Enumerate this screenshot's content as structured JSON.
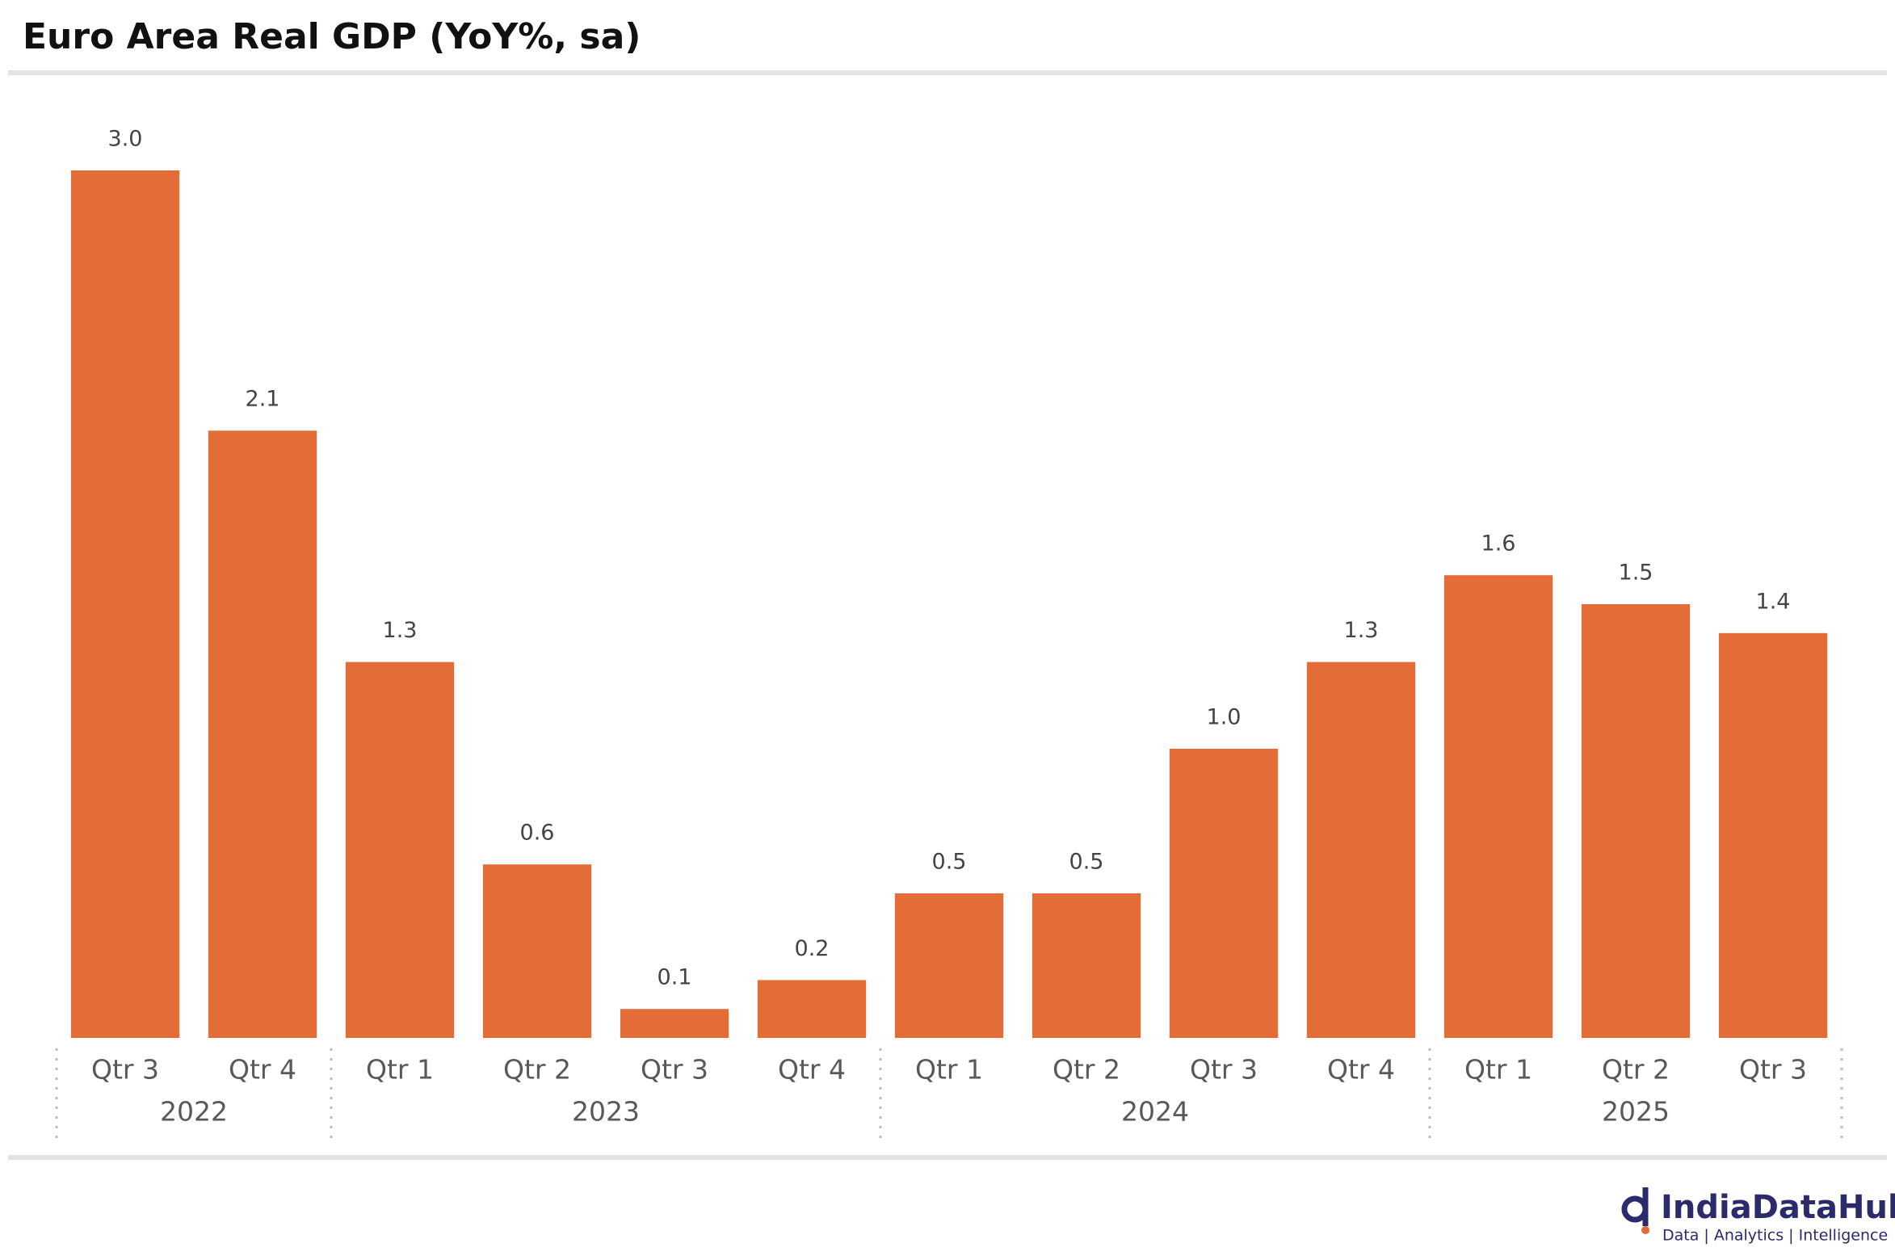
{
  "chart_data": {
    "type": "bar",
    "title": "Euro Area Real GDP (YoY%, sa)",
    "color": "#e36c37",
    "groups": [
      {
        "label": "2022",
        "categories": [
          "Qtr 3",
          "Qtr 4"
        ],
        "values": [
          3.0,
          2.1
        ],
        "value_labels": [
          "3.0",
          "2.1"
        ]
      },
      {
        "label": "2023",
        "categories": [
          "Qtr 1",
          "Qtr 2",
          "Qtr 3",
          "Qtr 4"
        ],
        "values": [
          1.3,
          0.6,
          0.1,
          0.2
        ],
        "value_labels": [
          "1.3",
          "0.6",
          "0.1",
          "0.2"
        ]
      },
      {
        "label": "2024",
        "categories": [
          "Qtr 1",
          "Qtr 2",
          "Qtr 3",
          "Qtr 4"
        ],
        "values": [
          0.5,
          0.5,
          1.0,
          1.3
        ],
        "value_labels": [
          "0.5",
          "0.5",
          "1.0",
          "1.3"
        ]
      },
      {
        "label": "2025",
        "categories": [
          "Qtr 1",
          "Qtr 2",
          "Qtr 3"
        ],
        "values": [
          1.6,
          1.5,
          1.4
        ],
        "value_labels": [
          "1.6",
          "1.5",
          "1.4"
        ]
      }
    ]
  },
  "footer": {
    "brand": "IndiaDataHub",
    "tagline": "Data | Analytics | Intelligence"
  }
}
